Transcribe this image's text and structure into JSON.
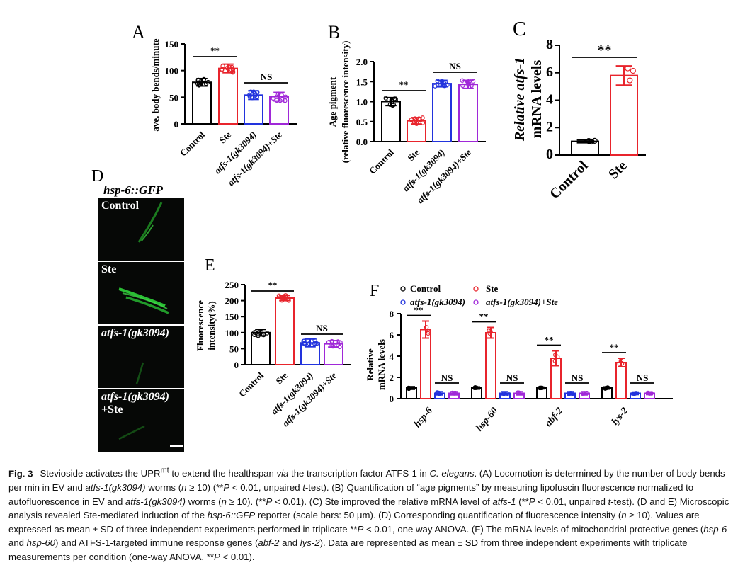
{
  "panels": {
    "A": {
      "letter": "A",
      "ylabel": "ave. body bends/minute",
      "yticks": [
        "0",
        "50",
        "100",
        "150"
      ],
      "groups": [
        "Control",
        "Ste",
        "atfs-1(gk3094)",
        "atfs-1(gk3094)+Ste"
      ],
      "sig": [
        "**",
        "NS"
      ]
    },
    "B": {
      "letter": "B",
      "ylabel1": "Age pigment",
      "ylabel2": "(relative fluorescence intensity)",
      "yticks": [
        "0.0",
        "0.5",
        "1.0",
        "1.5",
        "2.0"
      ],
      "groups": [
        "Control",
        "Ste",
        "atfs-1(gk3094)",
        "atfs-1(gk3094)+Ste"
      ],
      "sig": [
        "**",
        "NS"
      ]
    },
    "C": {
      "letter": "C",
      "ylabel1": "Relative atfs-1",
      "ylabel2": "mRNA levels",
      "yticks": [
        "0",
        "2",
        "4",
        "6",
        "8"
      ],
      "groups": [
        "Control",
        "Ste"
      ],
      "sig": [
        "**"
      ]
    },
    "D": {
      "letter": "D",
      "title": "hsp-6::GFP",
      "images": [
        "Control",
        "Ste",
        "atfs-1(gk3094)",
        "atfs-1(gk3094)",
        "+Ste"
      ]
    },
    "E": {
      "letter": "E",
      "ylabel1": "Fluorescence",
      "ylabel2": "intensity(%)",
      "yticks": [
        "0",
        "50",
        "100",
        "150",
        "200",
        "250"
      ],
      "groups": [
        "Control",
        "Ste",
        "atfs-1(gk3094)",
        "atfs-1(gk3094)+Ste"
      ],
      "sig": [
        "**",
        "NS"
      ]
    },
    "F": {
      "letter": "F",
      "ylabel1": "Relative",
      "ylabel2": "mRNA levels",
      "yticks": [
        "0",
        "2",
        "4",
        "6",
        "8"
      ],
      "legend": [
        "Control",
        "Ste",
        "atfs-1(gk3094)",
        "atfs-1(gk3094)+Ste"
      ],
      "genes": [
        "hsp-6",
        "hsp-60",
        "abf-2",
        "lys-2"
      ],
      "sig": [
        "**",
        "NS"
      ]
    }
  },
  "colors": {
    "control": "#000000",
    "ste": "#e8242c",
    "atfs": "#2233dd",
    "atfs_ste": "#a028d8"
  },
  "chart_data": [
    {
      "panel": "A",
      "type": "bar",
      "ylabel": "ave. body bends/minute",
      "ylim": [
        0,
        150
      ],
      "categories": [
        "Control",
        "Ste",
        "atfs-1(gk3094)",
        "atfs-1(gk3094)+Ste"
      ],
      "values": [
        78,
        104,
        54,
        51
      ],
      "errors": [
        7,
        8,
        8,
        8
      ]
    },
    {
      "panel": "B",
      "type": "bar",
      "ylabel": "Age pigment (relative fluorescence intensity)",
      "ylim": [
        0,
        2.0
      ],
      "categories": [
        "Control",
        "Ste",
        "atfs-1(gk3094)",
        "atfs-1(gk3094)+Ste"
      ],
      "values": [
        1.0,
        0.52,
        1.45,
        1.43
      ],
      "errors": [
        0.1,
        0.08,
        0.08,
        0.1
      ]
    },
    {
      "panel": "C",
      "type": "bar",
      "ylabel": "Relative atfs-1 mRNA levels",
      "ylim": [
        0,
        8
      ],
      "categories": [
        "Control",
        "Ste"
      ],
      "values": [
        1.0,
        5.8
      ],
      "errors": [
        0.1,
        0.7
      ]
    },
    {
      "panel": "E",
      "type": "bar",
      "ylabel": "Fluorescence intensity(%)",
      "ylim": [
        0,
        250
      ],
      "categories": [
        "Control",
        "Ste",
        "atfs-1(gk3094)",
        "atfs-1(gk3094)+Ste"
      ],
      "values": [
        100,
        208,
        68,
        65
      ],
      "errors": [
        10,
        8,
        12,
        10
      ]
    },
    {
      "panel": "F",
      "type": "bar",
      "ylabel": "Relative mRNA levels",
      "ylim": [
        0,
        8
      ],
      "categories": [
        "hsp-6",
        "hsp-60",
        "abf-2",
        "lys-2"
      ],
      "series": [
        {
          "name": "Control",
          "values": [
            1.0,
            1.0,
            1.0,
            1.0
          ],
          "errors": [
            0.12,
            0.1,
            0.08,
            0.1
          ]
        },
        {
          "name": "Ste",
          "values": [
            6.5,
            6.2,
            3.8,
            3.4
          ],
          "errors": [
            0.8,
            0.5,
            0.7,
            0.4
          ]
        },
        {
          "name": "atfs-1(gk3094)",
          "values": [
            0.5,
            0.5,
            0.5,
            0.5
          ],
          "errors": [
            0.15,
            0.15,
            0.15,
            0.12
          ]
        },
        {
          "name": "atfs-1(gk3094)+Ste",
          "values": [
            0.5,
            0.5,
            0.5,
            0.5
          ],
          "errors": [
            0.15,
            0.15,
            0.15,
            0.12
          ]
        }
      ]
    }
  ],
  "caption": {
    "label": "Fig. 3",
    "p1": "Stevioside activates the UPR",
    "sup": "mt",
    "p2": " to extend the healthspan ",
    "via": "via",
    "p3": " the transcription factor ATFS-1 in ",
    "species": "C. elegans",
    "p4": ". (A) Locomotion is determined by the number of body bends per min in EV and ",
    "s1": "atfs-1(gk3094)",
    "p5": " worms (",
    "n1": "n",
    "p6": " ≥ 10) (**",
    "P1": "P",
    "p7": " < 0.01, unpaired ",
    "t1": "t",
    "p8": "-test). (B) Quantification of “age pigments” by measuring lipofuscin fluorescence normalized to autofluorescence in EV and ",
    "s2": "atfs-1(gk3094)",
    "p9": " worms (",
    "n2": "n",
    "p10": " ≥ 10). (**",
    "P2": "P",
    "p11": " < 0.01). (C) Ste improved the relative mRNA level of ",
    "s3": "atfs-1",
    "p12": " (**",
    "P3": "P",
    "p13": " < 0.01, unpaired ",
    "t2": "t",
    "p14": "-test). (D and E) Microscopic analysis revealed Ste-mediated induction of the ",
    "s4": "hsp-6::GFP",
    "p15": " reporter (scale bars: 50 μm). (D) Corresponding quantification of fluorescence intensity (",
    "n3": "n",
    "p16": " ≥ 10). Values are expressed as mean ± SD of three independent experiments performed in triplicate **",
    "P4": "P",
    "p17": " < 0.01, one way ANOVA. (F) The mRNA levels of mitochondrial protective genes (",
    "s5": "hsp-6",
    "p18": " and ",
    "s6": "hsp-60",
    "p19": ") and ATFS-1-targeted immune response genes (",
    "s7": "abf-2",
    "p20": " and ",
    "s8": "lys-2",
    "p21": "). Data are represented as mean ± SD from three independent experiments with triplicate measurements per condition (one-way ANOVA, **",
    "P5": "P",
    "p22": " < 0.01)."
  }
}
